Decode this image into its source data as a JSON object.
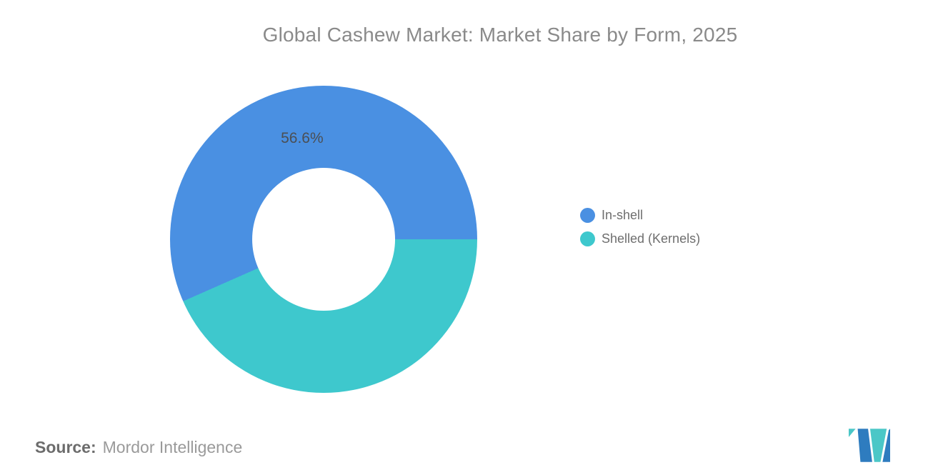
{
  "chart_data": {
    "type": "pie",
    "subtype": "donut",
    "title": "Global Cashew Market: Market Share by Form, 2025",
    "labels": [
      "In-shell",
      "Shelled (Kernels)"
    ],
    "values": [
      56.6,
      43.4
    ],
    "colors": [
      "#4a90e2",
      "#3ec8cd"
    ],
    "data_labels": [
      "56.6%",
      ""
    ],
    "unit": "%",
    "legend_position": "right",
    "rotation_deg": 246.2,
    "inner_radius_pct": 46.5
  },
  "legend": {
    "items": [
      {
        "label": "In-shell",
        "color": "#4a90e2"
      },
      {
        "label": "Shelled (Kernels)",
        "color": "#3ec8cd"
      }
    ]
  },
  "source": {
    "prefix": "Source:",
    "name": "Mordor Intelligence"
  },
  "logo": {
    "name": "mordor-intelligence-logo",
    "blue": "#2e7cbf",
    "teal": "#4bc7c7"
  }
}
